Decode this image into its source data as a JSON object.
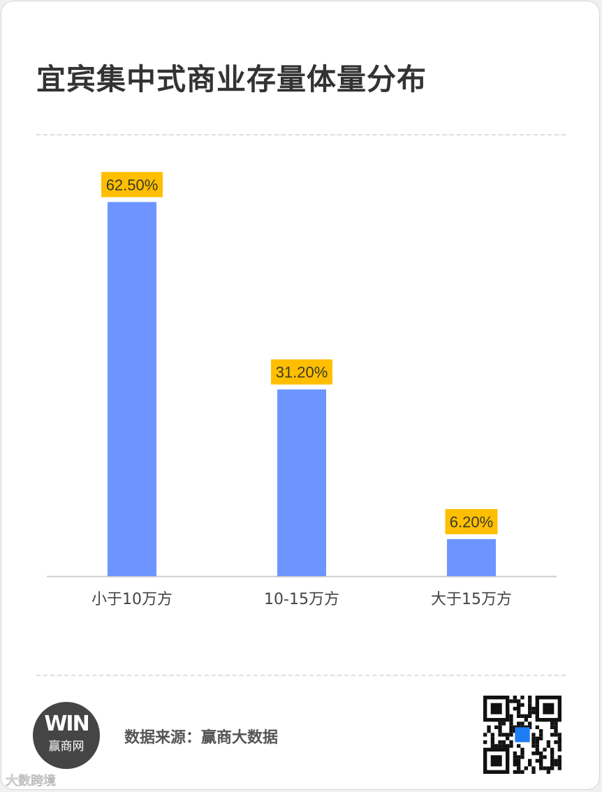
{
  "chart_data": {
    "type": "bar",
    "title": "宜宾集中式商业存量体量分布",
    "categories": [
      "小于10万方",
      "10-15万方",
      "大于15万方"
    ],
    "values": [
      62.5,
      31.2,
      6.2
    ],
    "data_labels": [
      "62.50%",
      "31.20%",
      "6.20%"
    ],
    "xlabel": "",
    "ylabel": "",
    "ylim": [
      0,
      70
    ],
    "grid": false,
    "colors": {
      "bar": "#6e95ff",
      "label_bg": "#ffbf00",
      "label_text": "#3a3a2a",
      "axis": "#cccccc"
    }
  },
  "footer": {
    "source": "数据来源：赢商大数据",
    "logo_text": "WIN",
    "logo_name": "赢商网",
    "watermark": "大数跨境"
  }
}
